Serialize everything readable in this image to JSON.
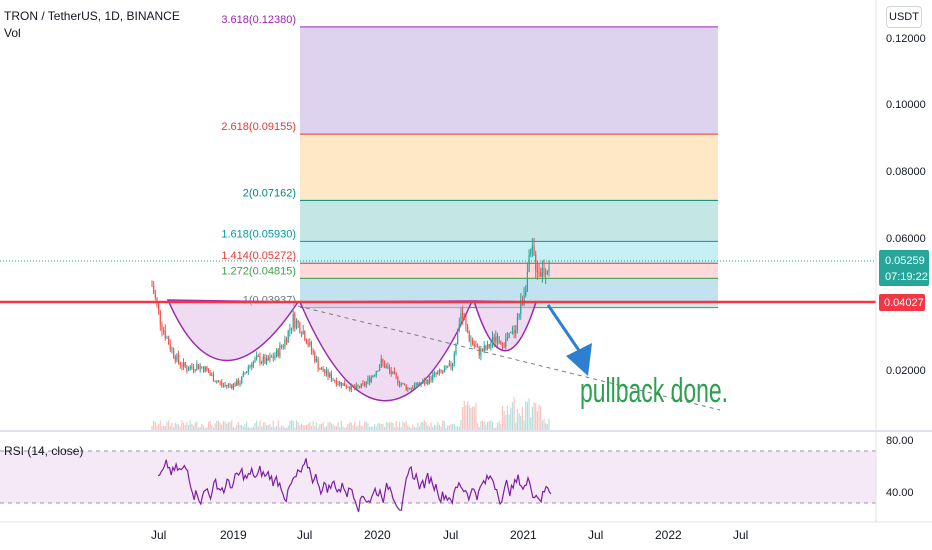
{
  "header": {
    "symbol": "TRON / TetherUS, 1D, BINANCE",
    "vol_label": "Vol",
    "currency_button": "USDT"
  },
  "rsi": {
    "label": "RSI (14, close)",
    "levels": [
      "80.00",
      "40.00"
    ],
    "color": "#7b1fa2"
  },
  "price_axis": {
    "ticks": [
      "0.12000",
      "0.10000",
      "0.08000",
      "0.06000",
      "0.02000"
    ],
    "current_price": "0.05259",
    "countdown": "07:19:22",
    "line_price": "0.04027"
  },
  "time_axis": {
    "ticks": [
      "Jul",
      "2019",
      "Jul",
      "2020",
      "Jul",
      "2021",
      "Jul",
      "2022",
      "Jul"
    ]
  },
  "annotation": {
    "text": "pullback done.",
    "color": "#2e9e4f"
  },
  "colors": {
    "candle_up": "#26a69a",
    "candle_down": "#ef5350",
    "horizontal_line": "#f23645",
    "current_price_label": "#26a69a",
    "arrow": "#2f7fd1",
    "cup_fill": "#e1bee7",
    "cup_stroke": "#9c27b0"
  },
  "chart_data": {
    "type": "candlestick",
    "fib_levels": [
      {
        "label": "3.618(0.12380)",
        "value": 0.1238,
        "color": "#9c27b0"
      },
      {
        "label": "2.618(0.09155)",
        "value": 0.09155,
        "color": "#e53935"
      },
      {
        "label": "2(0.07162)",
        "value": 0.07162,
        "color": "#00897b"
      },
      {
        "label": "1.618(0.05930)",
        "value": 0.0593,
        "color": "#0097a7"
      },
      {
        "label": "1.414(0.05272)",
        "value": 0.05272,
        "color": "#e53935"
      },
      {
        "label": "1.272(0.04815)",
        "value": 0.04815,
        "color": "#43a047"
      },
      {
        "label": "1(0.03937)",
        "value": 0.03937,
        "color": "#607d8b"
      }
    ],
    "price_series_approx": [
      0.046,
      0.035,
      0.028,
      0.023,
      0.021,
      0.022,
      0.021,
      0.018,
      0.016,
      0.016,
      0.017,
      0.022,
      0.024,
      0.023,
      0.025,
      0.029,
      0.036,
      0.033,
      0.027,
      0.021,
      0.019,
      0.017,
      0.016,
      0.015,
      0.016,
      0.019,
      0.023,
      0.02,
      0.017,
      0.015,
      0.016,
      0.017,
      0.019,
      0.02,
      0.022,
      0.038,
      0.03,
      0.026,
      0.027,
      0.031,
      0.029,
      0.032,
      0.042,
      0.056,
      0.05,
      0.053
    ]
  }
}
